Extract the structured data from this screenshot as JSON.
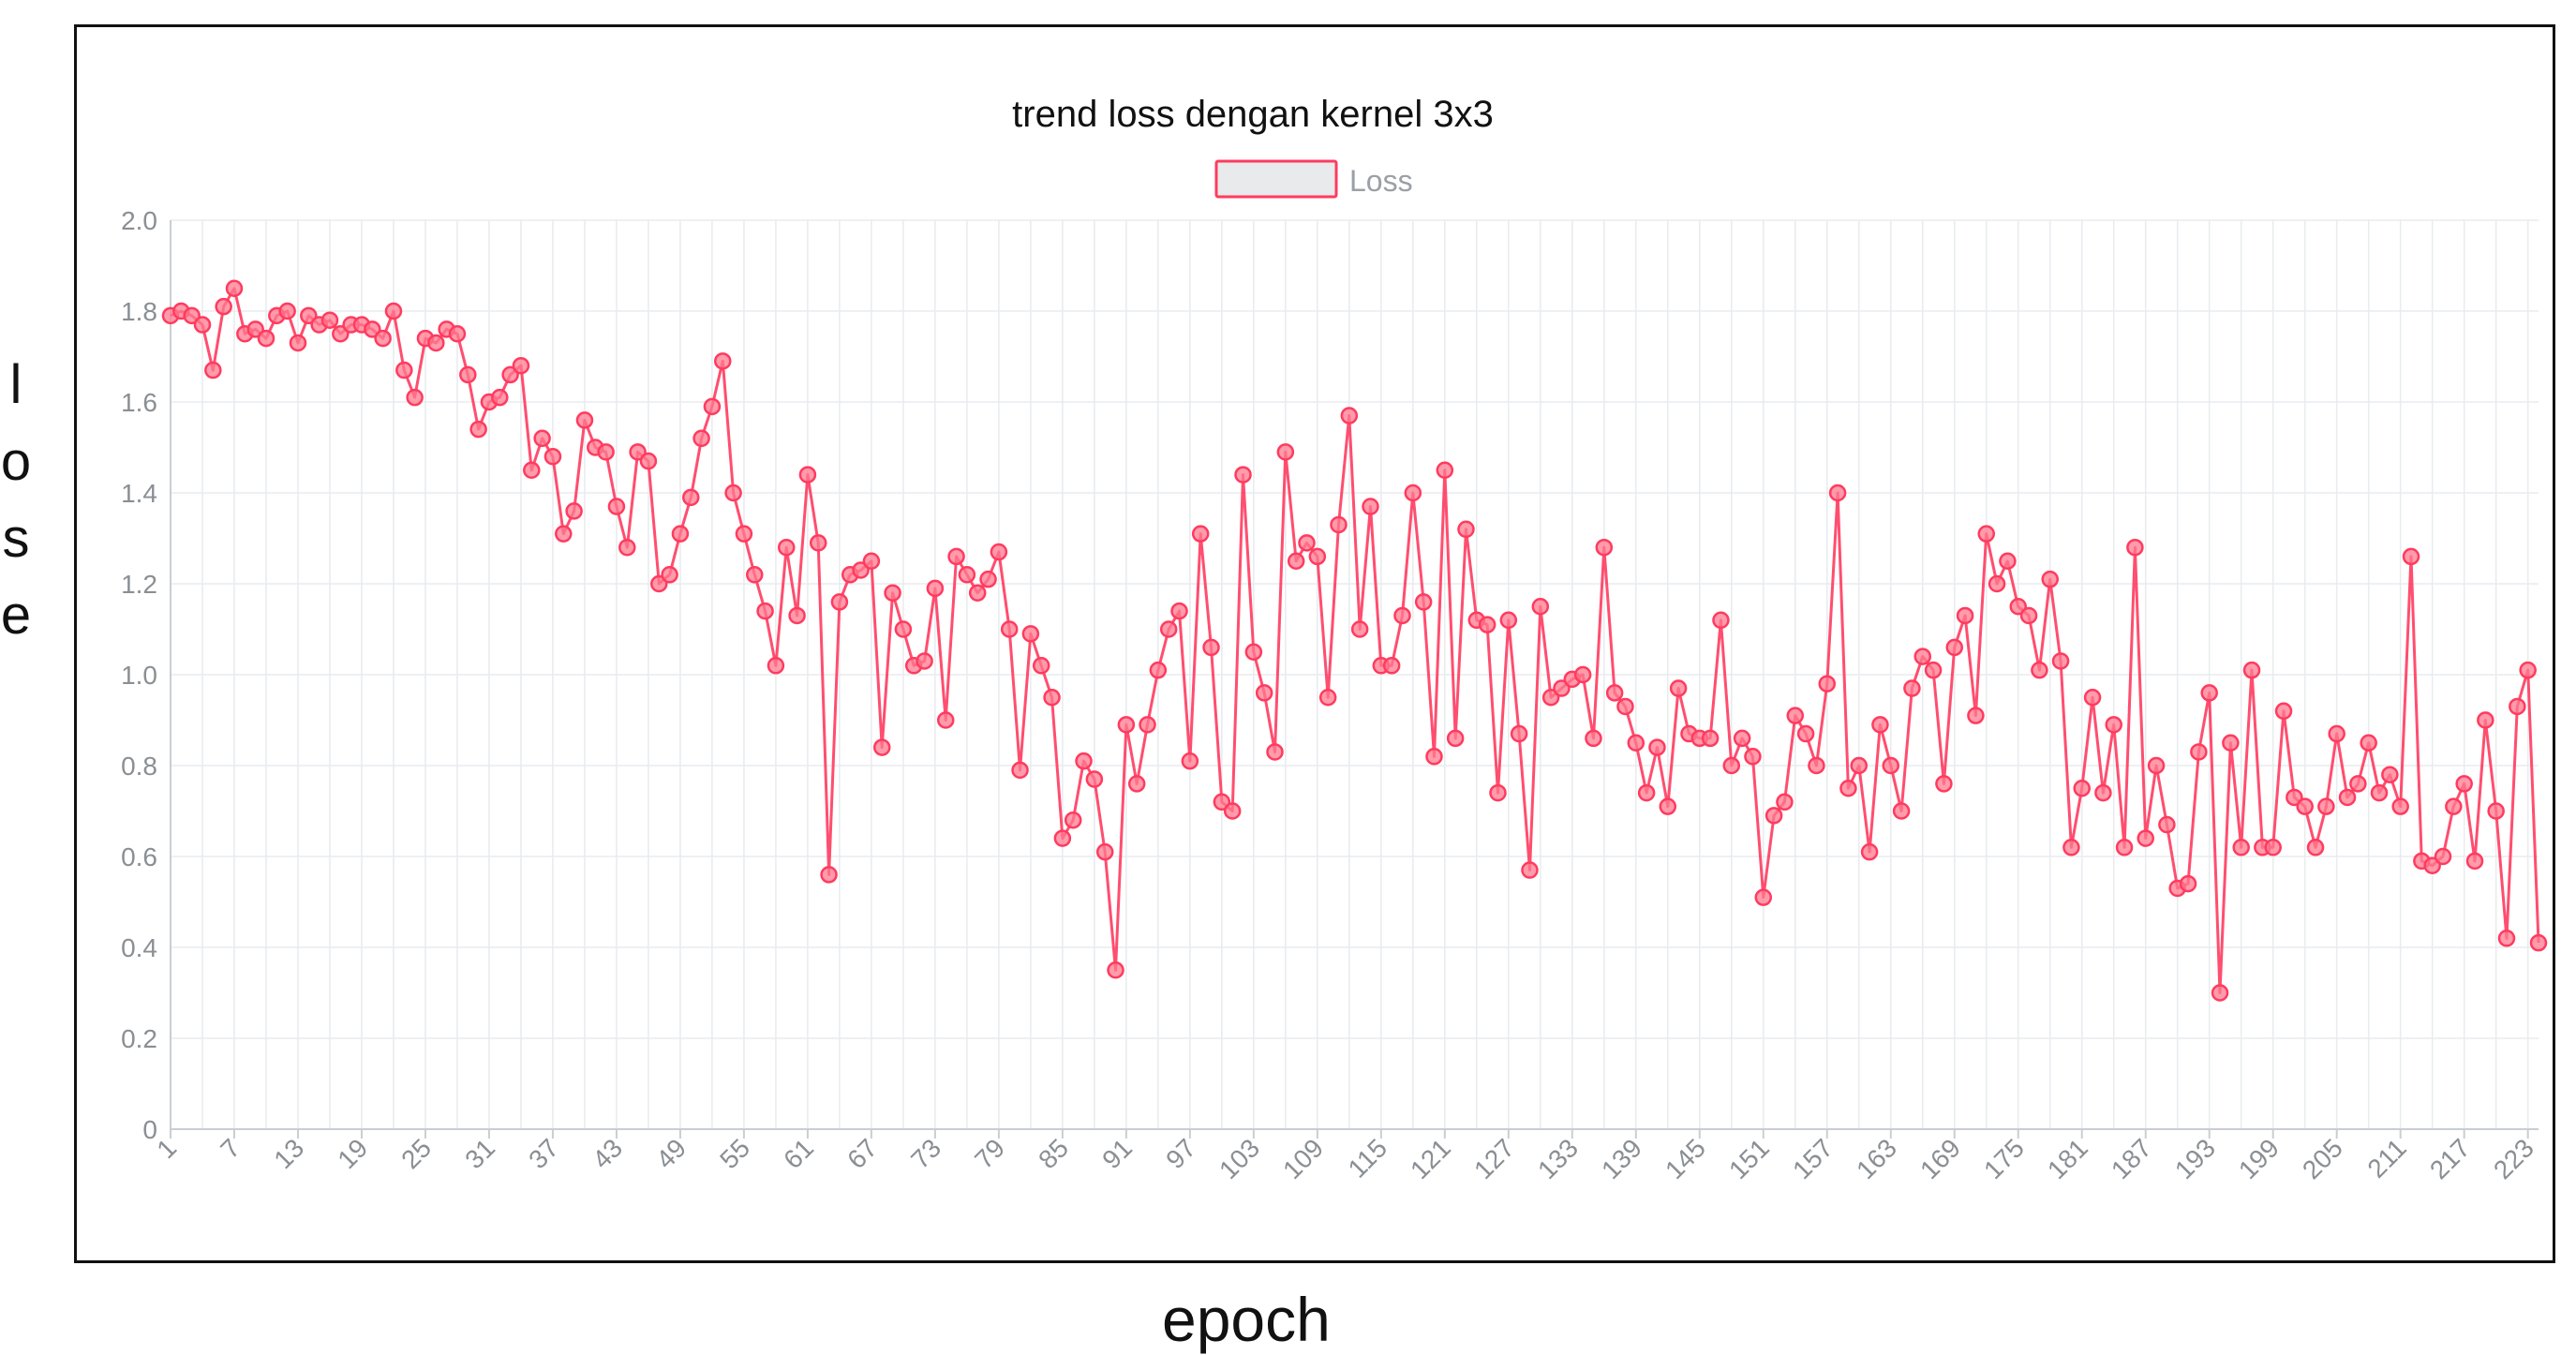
{
  "chart_data": {
    "type": "line",
    "title": "trend loss dengan kernel 3x3",
    "xlabel": "epoch",
    "ylabel": "lose",
    "ylim": [
      0,
      2.0
    ],
    "yticks": [
      0,
      0.2,
      0.4,
      0.6,
      0.8,
      1.0,
      1.2,
      1.4,
      1.6,
      1.8,
      2.0
    ],
    "xticks": [
      1,
      7,
      13,
      19,
      25,
      31,
      37,
      43,
      49,
      55,
      61,
      67,
      73,
      79,
      85,
      91,
      97,
      103,
      109,
      115,
      121,
      127,
      133,
      139,
      145,
      151,
      157,
      163,
      169,
      175,
      181,
      187,
      193,
      199,
      205,
      211,
      217,
      223
    ],
    "grid": true,
    "legend_position": "top-center",
    "x": [
      1,
      2,
      3,
      4,
      5,
      6,
      7,
      8,
      9,
      10,
      11,
      12,
      13,
      14,
      15,
      16,
      17,
      18,
      19,
      20,
      21,
      22,
      23,
      24,
      25,
      26,
      27,
      28,
      29,
      30,
      31,
      32,
      33,
      34,
      35,
      36,
      37,
      38,
      39,
      40,
      41,
      42,
      43,
      44,
      45,
      46,
      47,
      48,
      49,
      50,
      51,
      52,
      53,
      54,
      55,
      56,
      57,
      58,
      59,
      60,
      61,
      62,
      63,
      64,
      65,
      66,
      67,
      68,
      69,
      70,
      71,
      72,
      73,
      74,
      75,
      76,
      77,
      78,
      79,
      80,
      81,
      82,
      83,
      84,
      85,
      86,
      87,
      88,
      89,
      90,
      91,
      92,
      93,
      94,
      95,
      96,
      97,
      98,
      99,
      100,
      101,
      102,
      103,
      104,
      105,
      106,
      107,
      108,
      109,
      110,
      111,
      112,
      113,
      114,
      115,
      116,
      117,
      118,
      119,
      120,
      121,
      122,
      123,
      124,
      125,
      126,
      127,
      128,
      129,
      130,
      131,
      132,
      133,
      134,
      135,
      136,
      137,
      138,
      139,
      140,
      141,
      142,
      143,
      144,
      145,
      146,
      147,
      148,
      149,
      150,
      151,
      152,
      153,
      154,
      155,
      156,
      157,
      158,
      159,
      160,
      161,
      162,
      163,
      164,
      165,
      166,
      167,
      168,
      169,
      170,
      171,
      172,
      173,
      174,
      175,
      176,
      177,
      178,
      179,
      180,
      181,
      182,
      183,
      184,
      185,
      186,
      187,
      188,
      189,
      190,
      191,
      192,
      193,
      194,
      195,
      196,
      197,
      198,
      199,
      200,
      201,
      202,
      203,
      204,
      205,
      206,
      207,
      208,
      209,
      210,
      211,
      212,
      213,
      214,
      215,
      216,
      217,
      218,
      219,
      220,
      221,
      222,
      223,
      224
    ],
    "series": [
      {
        "name": "Loss",
        "color": "#ff3b5f",
        "values": [
          1.79,
          1.8,
          1.79,
          1.77,
          1.67,
          1.81,
          1.85,
          1.75,
          1.76,
          1.74,
          1.79,
          1.8,
          1.73,
          1.79,
          1.77,
          1.78,
          1.75,
          1.77,
          1.77,
          1.76,
          1.74,
          1.8,
          1.67,
          1.61,
          1.74,
          1.73,
          1.76,
          1.75,
          1.66,
          1.54,
          1.6,
          1.61,
          1.66,
          1.68,
          1.45,
          1.52,
          1.48,
          1.31,
          1.36,
          1.56,
          1.5,
          1.49,
          1.37,
          1.28,
          1.49,
          1.47,
          1.2,
          1.22,
          1.31,
          1.39,
          1.52,
          1.59,
          1.69,
          1.4,
          1.31,
          1.22,
          1.14,
          1.02,
          1.28,
          1.13,
          1.44,
          1.29,
          0.56,
          1.16,
          1.22,
          1.23,
          1.25,
          0.84,
          1.18,
          1.1,
          1.02,
          1.03,
          1.19,
          0.9,
          1.26,
          1.22,
          1.18,
          1.21,
          1.27,
          1.1,
          0.79,
          1.09,
          1.02,
          0.95,
          0.64,
          0.68,
          0.81,
          0.77,
          0.61,
          0.35,
          0.89,
          0.76,
          0.89,
          1.01,
          1.1,
          1.14,
          0.81,
          1.31,
          1.06,
          0.72,
          0.7,
          1.44,
          1.05,
          0.96,
          0.83,
          1.49,
          1.25,
          1.29,
          1.26,
          0.95,
          1.33,
          1.57,
          1.1,
          1.37,
          1.02,
          1.02,
          1.13,
          1.4,
          1.16,
          0.82,
          1.45,
          0.86,
          1.32,
          1.12,
          1.11,
          0.74,
          1.12,
          0.87,
          0.57,
          1.15,
          0.95,
          0.97,
          0.99,
          1.0,
          0.86,
          1.28,
          0.96,
          0.93,
          0.85,
          0.74,
          0.84,
          0.71,
          0.97,
          0.87,
          0.86,
          0.86,
          1.12,
          0.8,
          0.86,
          0.82,
          0.51,
          0.69,
          0.72,
          0.91,
          0.87,
          0.8,
          0.98,
          1.4,
          0.75,
          0.8,
          0.61,
          0.89,
          0.8,
          0.7,
          0.97,
          1.04,
          1.01,
          0.76,
          1.06,
          1.13,
          0.91,
          1.31,
          1.2,
          1.25,
          1.15,
          1.13,
          1.01,
          1.21,
          1.03,
          0.62,
          0.75,
          0.95,
          0.74,
          0.89,
          0.62,
          1.28,
          0.64,
          0.8,
          0.67,
          0.53,
          0.54,
          0.83,
          0.96,
          0.3,
          0.85,
          0.62,
          1.01,
          0.62,
          0.62,
          0.92,
          0.73,
          0.71,
          0.62,
          0.71,
          0.87,
          0.73,
          0.76,
          0.85,
          0.74,
          0.78,
          0.71,
          1.26,
          0.59,
          0.58,
          0.6,
          0.71,
          0.76,
          0.59,
          0.9,
          0.7,
          0.42,
          0.93,
          1.01,
          0.41
        ]
      }
    ]
  }
}
